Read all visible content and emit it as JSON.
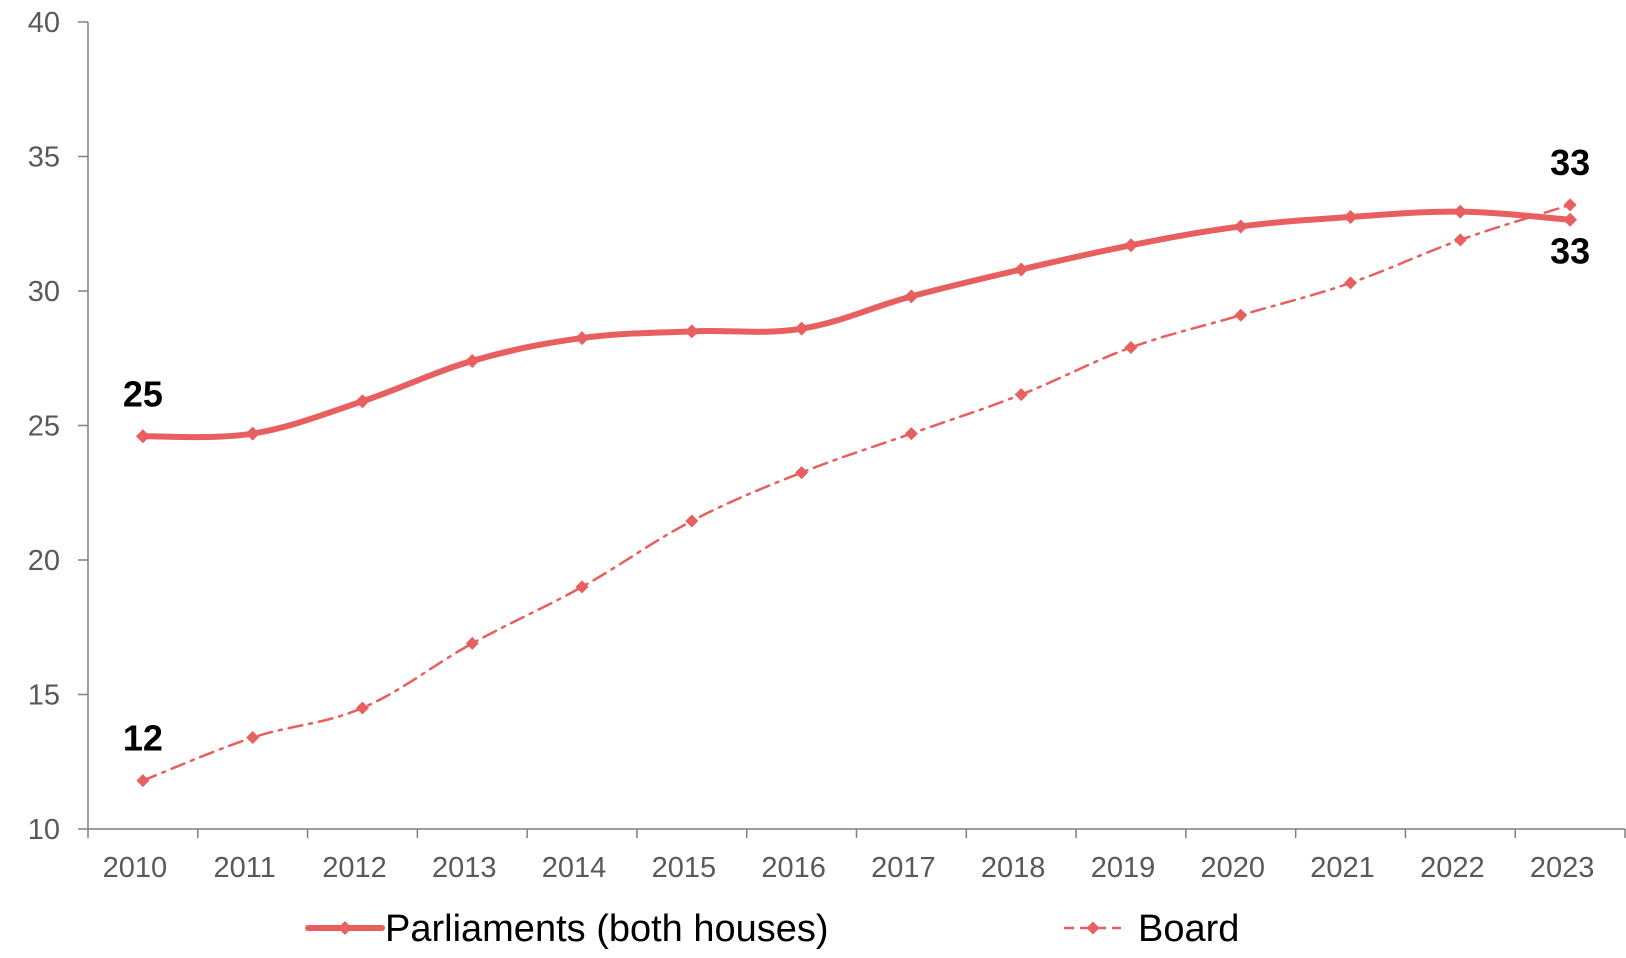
{
  "colors": {
    "series": "#e85f5f",
    "axis": "#7f7f7f",
    "tick_text": "#595959",
    "label_text": "#000000"
  },
  "chart_data": {
    "type": "line",
    "title": "",
    "xlabel": "",
    "ylabel": "",
    "categories": [
      "2010",
      "2011",
      "2012",
      "2013",
      "2014",
      "2015",
      "2016",
      "2017",
      "2018",
      "2019",
      "2020",
      "2021",
      "2022",
      "2023"
    ],
    "ylim": [
      10,
      40
    ],
    "yticks": [
      "10",
      "15",
      "20",
      "25",
      "30",
      "35",
      "40"
    ],
    "grid": false,
    "legend_position": "bottom",
    "series": [
      {
        "name": "Parliaments (both houses)",
        "style": "solid",
        "marker": "diamond",
        "values": [
          24.6,
          24.7,
          25.9,
          27.4,
          28.25,
          28.5,
          28.6,
          29.8,
          30.8,
          31.7,
          32.4,
          32.75,
          32.95,
          32.65
        ]
      },
      {
        "name": "Board",
        "style": "dash-dot",
        "marker": "diamond",
        "values": [
          11.8,
          13.4,
          14.5,
          16.9,
          19.0,
          21.45,
          23.25,
          24.7,
          26.15,
          27.9,
          29.1,
          30.3,
          31.9,
          33.2
        ]
      }
    ],
    "annotations": [
      {
        "series": 0,
        "index": 0,
        "text": "25",
        "placement": "above"
      },
      {
        "series": 1,
        "index": 0,
        "text": "12",
        "placement": "above"
      },
      {
        "series": 1,
        "index": 13,
        "text": "33",
        "placement": "above"
      },
      {
        "series": 0,
        "index": 13,
        "text": "33",
        "placement": "below"
      }
    ]
  }
}
